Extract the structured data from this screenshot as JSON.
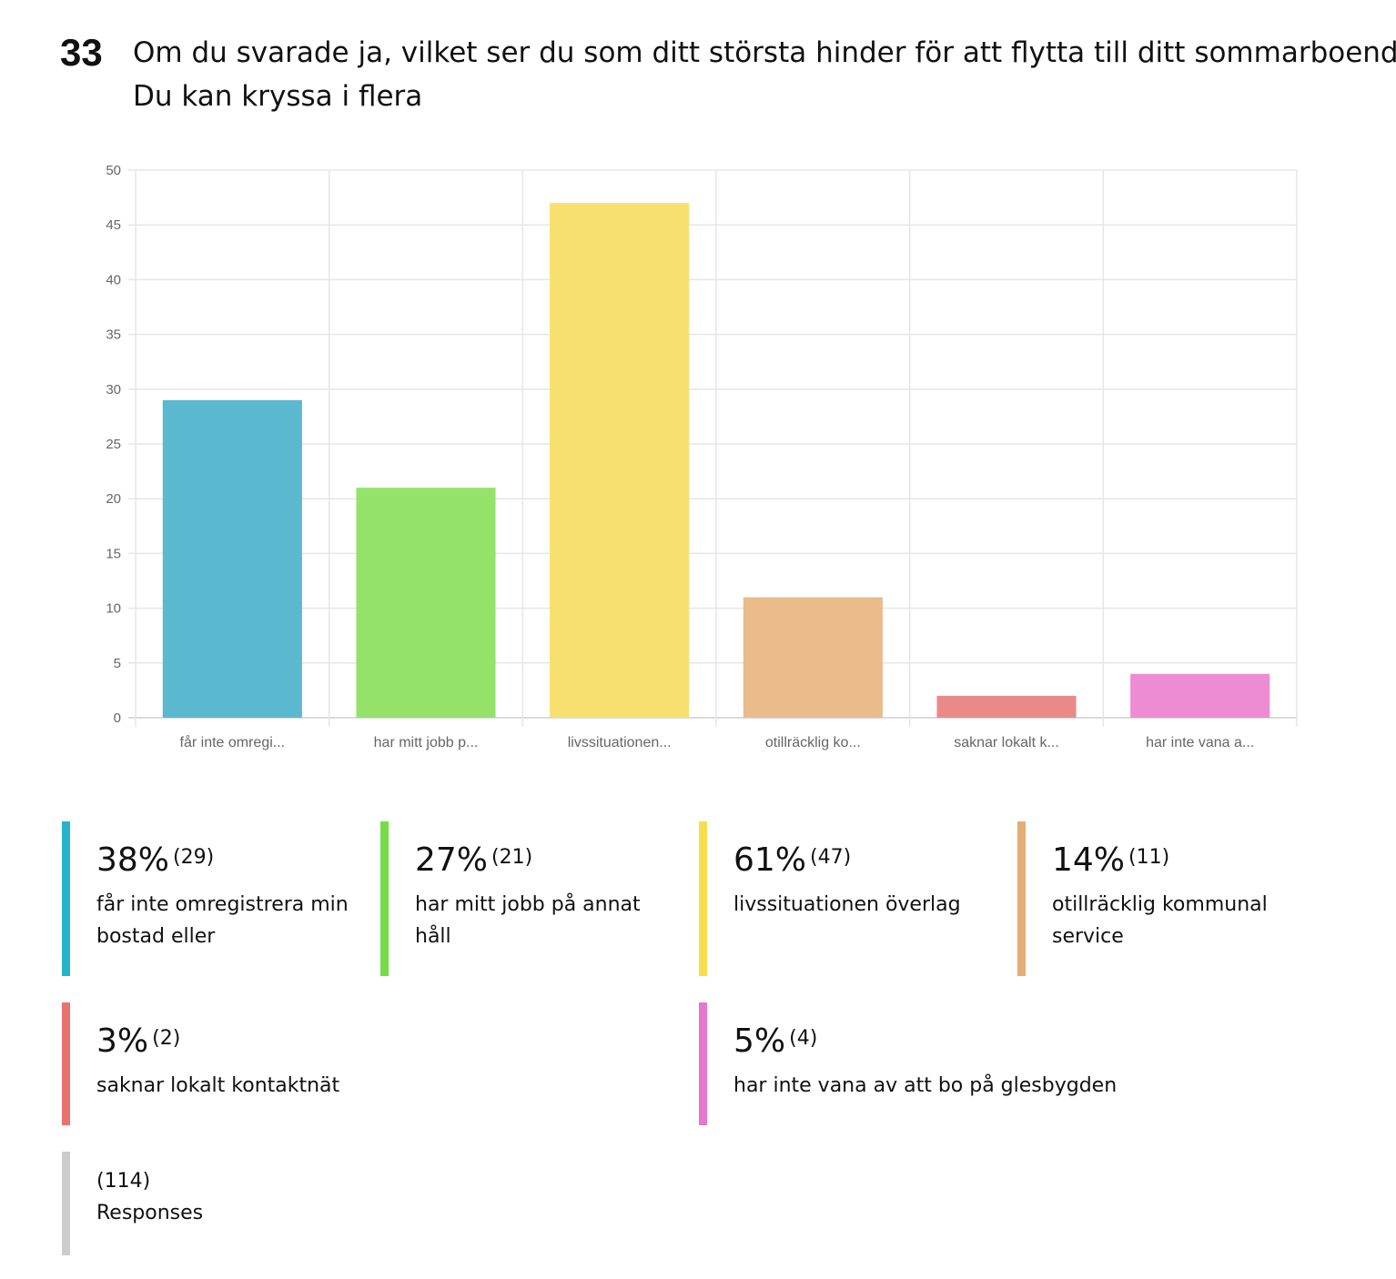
{
  "question": {
    "number": "33",
    "title_line1": "Om du svarade ja, vilket ser du som ditt största hinder för att flytta till ditt sommarboende?",
    "title_line2": "Du kan kryssa i flera"
  },
  "chart_data": {
    "type": "bar",
    "categories": [
      "får inte omregi...",
      "har mitt jobb p...",
      "livssituationen...",
      "otillräcklig ko...",
      "saknar lokalt k...",
      "har inte vana a..."
    ],
    "values": [
      29,
      21,
      47,
      11,
      2,
      4
    ],
    "colors": [
      "#5bb9cf",
      "#94e26a",
      "#f7e070",
      "#eabb8b",
      "#e98a88",
      "#ee8cd3"
    ],
    "ylim": [
      0,
      50
    ],
    "yticks": [
      "0",
      "5",
      "10",
      "15",
      "20",
      "25",
      "30",
      "35",
      "40",
      "45",
      "50"
    ],
    "grid": true
  },
  "legend": [
    {
      "percent": "38%",
      "count": "(29)",
      "label": "får inte omregistrera min bostad eller",
      "color": "#27b3cc"
    },
    {
      "percent": "27%",
      "count": "(21)",
      "label": "har mitt jobb på annat håll",
      "color": "#74dc46"
    },
    {
      "percent": "61%",
      "count": "(47)",
      "label": "livssituationen överlag",
      "color": "#f6de4c"
    },
    {
      "percent": "14%",
      "count": "(11)",
      "label": "otillräcklig kommunal service",
      "color": "#e3ad76"
    },
    {
      "percent": "3%",
      "count": "(2)",
      "label": "saknar lokalt kontaktnät",
      "color": "#e9716f"
    },
    {
      "percent": "5%",
      "count": "(4)",
      "label": "har inte vana av att bo på glesbygden",
      "color": "#e577cc"
    }
  ],
  "responses": {
    "count": "(114)",
    "label": "Responses",
    "color": "#cccccc"
  }
}
